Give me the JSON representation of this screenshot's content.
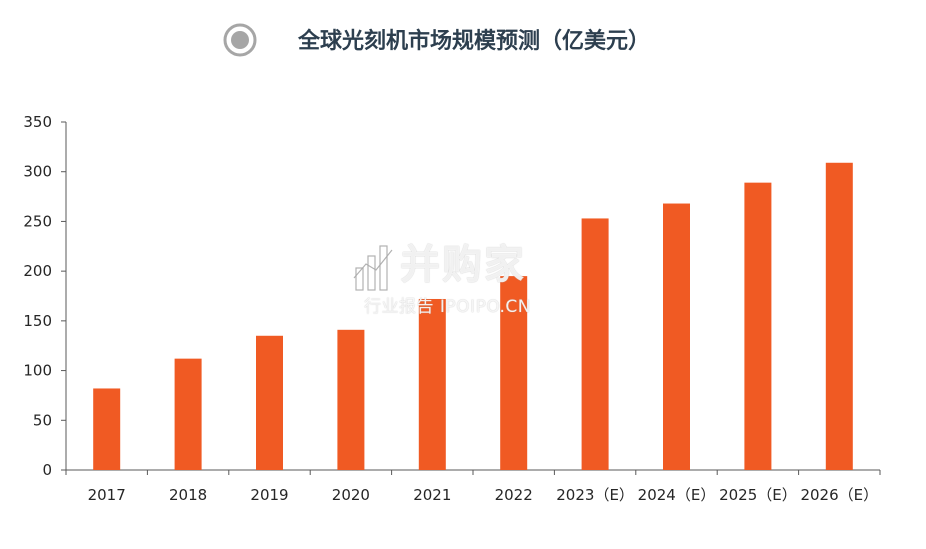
{
  "chart_data": {
    "type": "bar",
    "title": "全球光刻机市场规模预测（亿美元）",
    "xlabel": "",
    "ylabel": "",
    "categories": [
      "2017",
      "2018",
      "2019",
      "2020",
      "2021",
      "2022",
      "2023（E）",
      "2024（E）",
      "2025（E）",
      "2026（E）"
    ],
    "values": [
      82,
      112,
      135,
      141,
      172,
      195,
      253,
      268,
      289,
      309
    ],
    "ylim": [
      0,
      350
    ],
    "yticks": [
      "0",
      "50",
      "100",
      "150",
      "200",
      "250",
      "300",
      "350"
    ],
    "grid": false,
    "legend": "top-left",
    "bar_color": "#f05a23"
  },
  "watermark": {
    "brand": "并购家",
    "subtitle": "行业报告 IPOIPO.CN"
  }
}
